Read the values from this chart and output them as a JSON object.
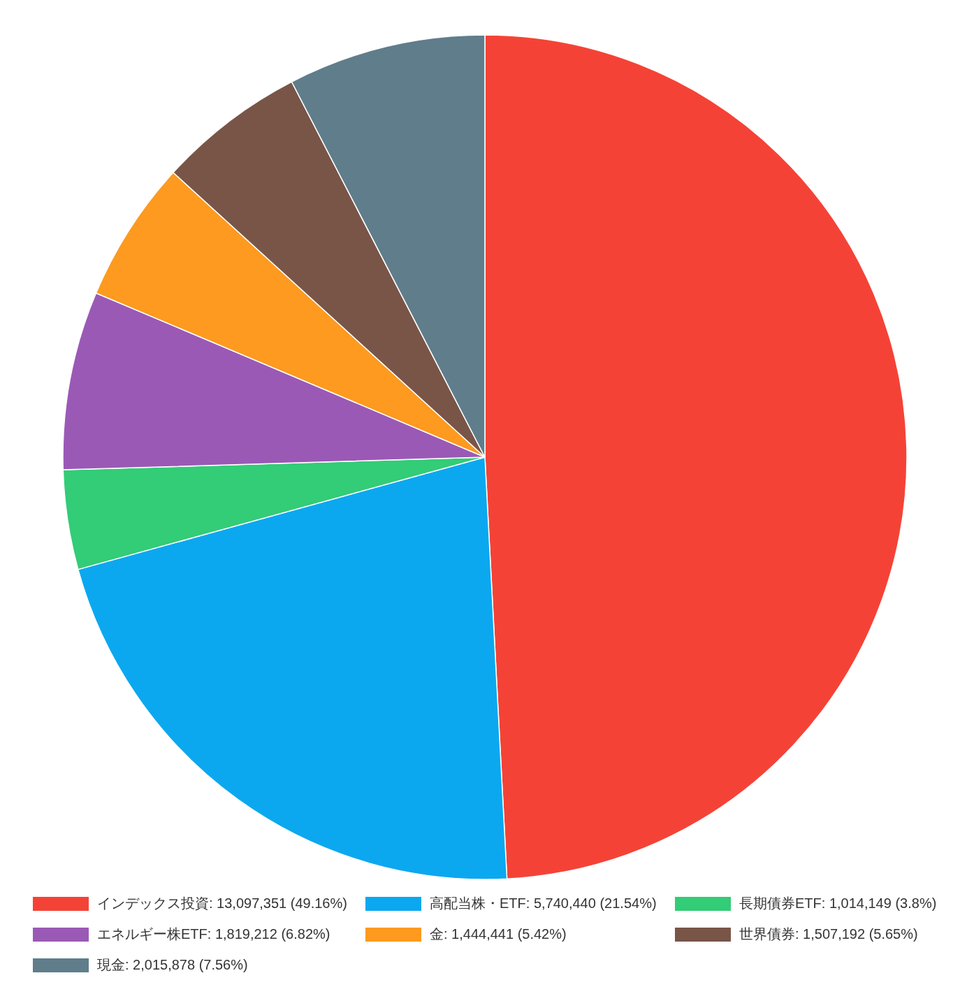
{
  "chart_data": {
    "type": "pie",
    "categories": [
      "インデックス投資: 13,097,351 (49.16%)",
      "高配当株・ETF: 5,740,440 (21.54%)",
      "長期債券ETF: 1,014,149 (3.8%)",
      "エネルギー株ETF: 1,819,212 (6.82%)",
      "金: 1,444,441 (5.42%)",
      "世界債券: 1,507,192 (5.65%)",
      "現金: 2,015,878 (7.56%)"
    ],
    "values": [
      13097351,
      5740440,
      1014149,
      1819212,
      1444441,
      1507192,
      2015878
    ],
    "colors": [
      "#f44336",
      "#0ba8f0",
      "#33cc77",
      "#9b59b6",
      "#fd9a1f",
      "#795548",
      "#607d8b"
    ],
    "legend": "bottom"
  }
}
